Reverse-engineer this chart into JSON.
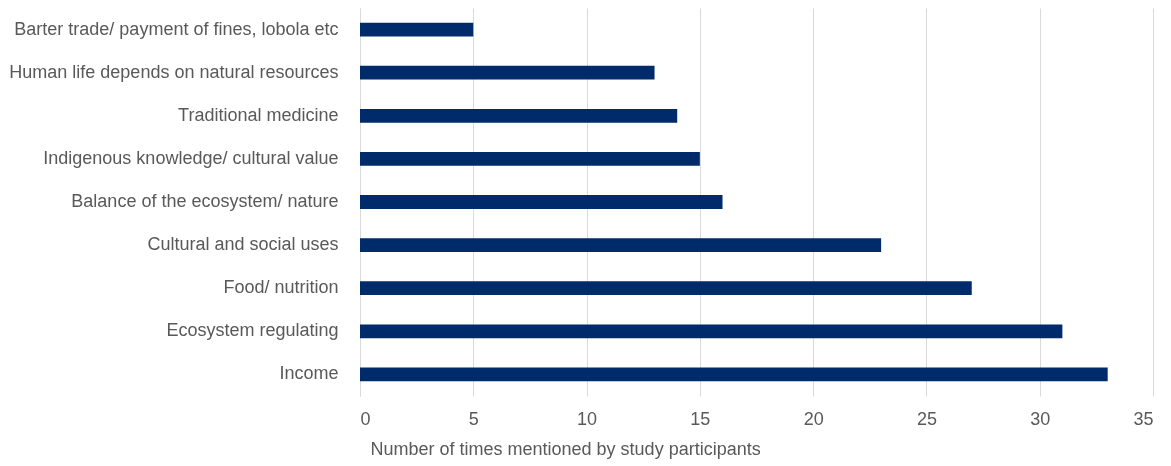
{
  "chart_data": {
    "type": "bar",
    "orientation": "horizontal",
    "categories": [
      "Barter trade/ payment of fines, lobola etc",
      "Human life depends on natural resources",
      "Traditional medicine",
      "Indigenous knowledge/ cultural value",
      "Balance of the ecosystem/ nature",
      "Cultural and social uses",
      "Food/ nutrition",
      "Ecosystem regulating",
      "Income"
    ],
    "values": [
      5,
      13,
      14,
      15,
      16,
      23,
      27,
      31,
      33
    ],
    "color": "#002b6b",
    "xlabel": "Number of times mentioned by study participants",
    "xlim": [
      0,
      35
    ],
    "xticks": [
      0,
      5,
      10,
      15,
      20,
      25,
      30,
      35
    ],
    "grid": "x"
  }
}
